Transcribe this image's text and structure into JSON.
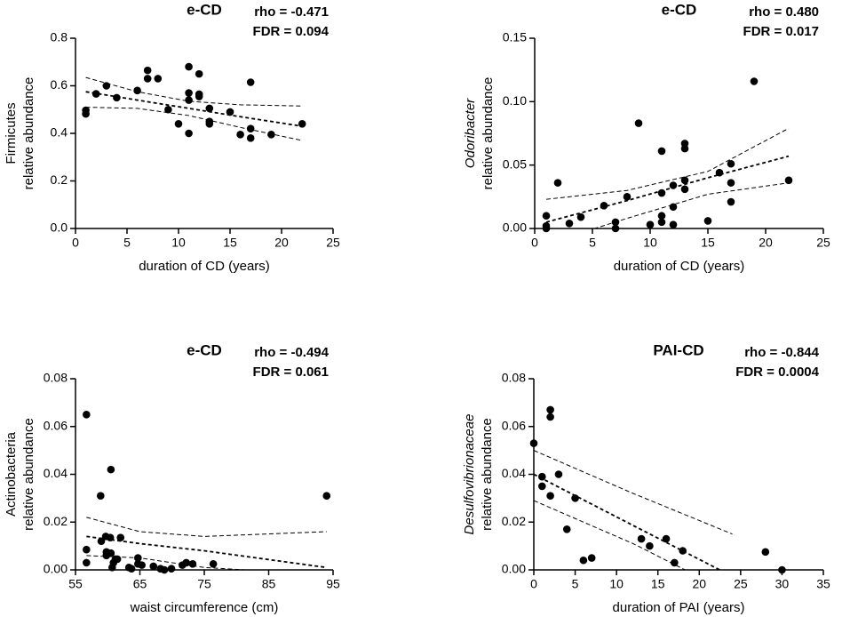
{
  "chart_data": [
    {
      "type": "scatter",
      "title": "e-CD",
      "xlabel": "duration of CD (years)",
      "ylabel": [
        "Firmicutes",
        "relative abundance"
      ],
      "ylabel_italic": false,
      "annotations": [
        "rho = -0.471",
        "FDR = 0.094"
      ],
      "color": "#000000",
      "x": [
        1,
        1,
        2,
        3,
        4,
        6,
        7,
        7,
        8,
        9,
        10,
        11,
        11,
        11,
        11,
        12,
        12,
        12,
        13,
        13,
        13,
        15,
        16,
        17,
        17,
        17,
        19,
        22
      ],
      "y": [
        0.497,
        0.482,
        0.566,
        0.6,
        0.55,
        0.58,
        0.665,
        0.63,
        0.63,
        0.5,
        0.44,
        0.68,
        0.57,
        0.54,
        0.4,
        0.65,
        0.565,
        0.555,
        0.505,
        0.45,
        0.44,
        0.49,
        0.395,
        0.615,
        0.42,
        0.38,
        0.395,
        0.44
      ],
      "fit_x": [
        1,
        6,
        11,
        16,
        22
      ],
      "fit": [
        0.575,
        0.54,
        0.505,
        0.47,
        0.43
      ],
      "ci_upper": [
        0.635,
        0.575,
        0.535,
        0.52,
        0.515
      ],
      "ci_lower": [
        0.51,
        0.505,
        0.475,
        0.425,
        0.37
      ],
      "xlim": [
        0,
        25
      ],
      "xticks": [
        0,
        5,
        10,
        15,
        20,
        25
      ],
      "ylim": [
        0,
        0.8
      ],
      "yticks": [
        {
          "value": 0,
          "label": "0.0"
        },
        {
          "value": 0.2,
          "label": "0.2"
        },
        {
          "value": 0.4,
          "label": "0.4"
        },
        {
          "value": 0.6,
          "label": "0.6"
        },
        {
          "value": 0.8,
          "label": "0.8"
        }
      ]
    },
    {
      "type": "scatter",
      "title": "e-CD",
      "xlabel": "duration of CD (years)",
      "ylabel": [
        "Odoribacter",
        "relative abundance"
      ],
      "ylabel_italic": true,
      "annotations": [
        "rho = 0.480",
        "FDR = 0.017"
      ],
      "color": "#000000",
      "x": [
        1,
        1,
        1,
        2,
        3,
        4,
        6,
        7,
        7,
        8,
        9,
        10,
        11,
        11,
        11,
        11,
        12,
        12,
        12,
        13,
        13,
        13,
        13,
        15,
        16,
        17,
        17,
        17,
        19,
        22
      ],
      "y": [
        0.0,
        0.01,
        0.002,
        0.036,
        0.004,
        0.009,
        0.018,
        0.005,
        0.0,
        0.025,
        0.083,
        0.003,
        0.061,
        0.028,
        0.01,
        0.005,
        0.034,
        0.017,
        0.003,
        0.067,
        0.063,
        0.038,
        0.031,
        0.006,
        0.044,
        0.051,
        0.036,
        0.021,
        0.116,
        0.038
      ],
      "fit_x": [
        1,
        8,
        15,
        22
      ],
      "fit": [
        0.005,
        0.022,
        0.04,
        0.057
      ],
      "ci_upper": [
        0.023,
        0.03,
        0.045,
        0.079
      ],
      "ci_lower": [
        -0.012,
        0.008,
        0.027,
        0.036
      ],
      "xlim": [
        0,
        25
      ],
      "xticks": [
        0,
        5,
        10,
        15,
        20,
        25
      ],
      "ylim": [
        0,
        0.15
      ],
      "yticks": [
        {
          "value": 0,
          "label": "0.00"
        },
        {
          "value": 0.05,
          "label": "0.05"
        },
        {
          "value": 0.1,
          "label": "0.10"
        },
        {
          "value": 0.15,
          "label": "0.15"
        }
      ]
    },
    {
      "type": "scatter",
      "title": "e-CD",
      "xlabel": "waist circumference (cm)",
      "ylabel": [
        "Actinobacteria",
        "relative abundance"
      ],
      "ylabel_italic": false,
      "annotations": [
        "rho = -0.494",
        "FDR = 0.061"
      ],
      "color": "#000000",
      "x": [
        56.7,
        56.7,
        56.7,
        58.9,
        59.0,
        59.7,
        59.8,
        59.8,
        60.4,
        60.5,
        60.5,
        60.7,
        60.9,
        61.2,
        61.5,
        62.0,
        63.3,
        63.7,
        64.7,
        64.7,
        65.3,
        67.1,
        68.2,
        68.8,
        69.9,
        71.6,
        72.2,
        73.2,
        76.4,
        94.0
      ],
      "y": [
        0.065,
        0.0085,
        0.003,
        0.031,
        0.012,
        0.014,
        0.0075,
        0.006,
        0.0135,
        0.042,
        0.007,
        0.001,
        0.003,
        0.0045,
        0.0045,
        0.0135,
        0.001,
        0.0005,
        0.005,
        0.0025,
        0.002,
        0.0015,
        0.0005,
        0.0,
        0.0005,
        0.002,
        0.003,
        0.0025,
        0.0025,
        0.031
      ],
      "fit_x": [
        56.7,
        65,
        75,
        94
      ],
      "fit": [
        0.014,
        0.011,
        0.008,
        0.001
      ],
      "ci_upper": [
        0.022,
        0.016,
        0.014,
        0.016
      ],
      "ci_lower": [
        0.006,
        0.005,
        0.001,
        -0.002
      ],
      "xlim": [
        55,
        95
      ],
      "xticks": [
        55,
        65,
        75,
        85,
        95
      ],
      "ylim": [
        0,
        0.08
      ],
      "yticks": [
        {
          "value": 0,
          "label": "0.00"
        },
        {
          "value": 0.02,
          "label": "0.02"
        },
        {
          "value": 0.04,
          "label": "0.04"
        },
        {
          "value": 0.06,
          "label": "0.06"
        },
        {
          "value": 0.08,
          "label": "0.08"
        }
      ]
    },
    {
      "type": "scatter",
      "title": "PAI-CD",
      "xlabel": "duration of PAI (years)",
      "ylabel": [
        "Desulfovibrionaceae",
        "relative abundance"
      ],
      "ylabel_italic": true,
      "annotations": [
        "rho = -0.844",
        "FDR = 0.0004"
      ],
      "color": "#000000",
      "x": [
        0,
        1,
        1,
        2,
        2,
        2,
        3,
        4,
        5,
        6,
        7,
        13,
        14,
        16,
        17,
        18,
        28,
        30
      ],
      "y": [
        0.053,
        0.039,
        0.035,
        0.067,
        0.064,
        0.031,
        0.04,
        0.017,
        0.03,
        0.004,
        0.005,
        0.013,
        0.01,
        0.013,
        0.003,
        0.008,
        0.0075,
        0.0
      ],
      "fit_x": [
        0,
        12,
        24
      ],
      "fit": [
        0.04,
        0.0186,
        -0.0027
      ],
      "ci_upper": [
        0.05,
        0.032,
        0.015
      ],
      "ci_lower": [
        0.029,
        0.011,
        -0.01
      ],
      "xlim": [
        0,
        35
      ],
      "xticks": [
        0,
        5,
        10,
        15,
        20,
        25,
        30,
        35
      ],
      "ylim": [
        0,
        0.08
      ],
      "yticks": [
        {
          "value": 0,
          "label": "0.00"
        },
        {
          "value": 0.02,
          "label": "0.02"
        },
        {
          "value": 0.04,
          "label": "0.04"
        },
        {
          "value": 0.06,
          "label": "0.06"
        },
        {
          "value": 0.08,
          "label": "0.08"
        }
      ]
    }
  ]
}
